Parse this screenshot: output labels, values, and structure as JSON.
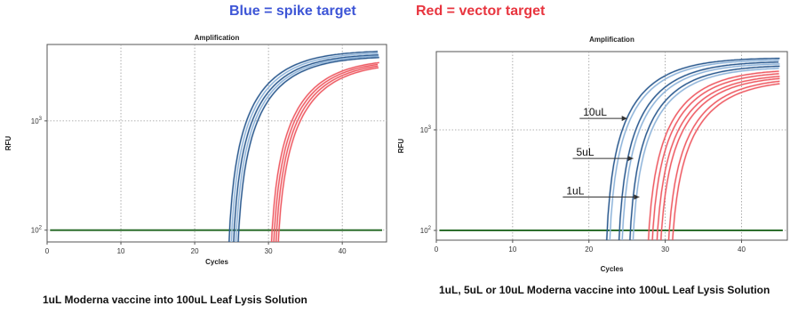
{
  "header": {
    "blue_label": "Blue = spike target",
    "red_label": "Red = vector target",
    "blue_color": "#3d55d6",
    "red_color": "#e8353f"
  },
  "colors": {
    "spike_dark": "#2b5a8f",
    "spike_light": "#8db3d9",
    "vector": "#ee5a62",
    "threshold": "#2d6e2d"
  },
  "chart_data": [
    {
      "type": "line",
      "title": "Amplification",
      "xlabel": "Cycles",
      "ylabel": "RFU",
      "xlim": [
        0,
        46
      ],
      "ylim": [
        78,
        5000
      ],
      "yscale": "log",
      "xticks": [
        0,
        10,
        20,
        30,
        40
      ],
      "yticks": [
        {
          "value": 100,
          "base": "10",
          "exp": "2"
        },
        {
          "value": 1000,
          "base": "10",
          "exp": "3"
        }
      ],
      "grid": true,
      "threshold": 100,
      "caption": "1uL Moderna vaccine into 100uL Leaf Lysis Solution",
      "series": [
        {
          "group": "spike",
          "start": 24.3,
          "max": 4400
        },
        {
          "group": "spike",
          "start": 24.6,
          "max": 4250
        },
        {
          "group": "spike",
          "start": 24.9,
          "max": 4100
        },
        {
          "group": "spike",
          "start": 25.2,
          "max": 4000
        },
        {
          "group": "spike",
          "start": 25.5,
          "max": 3900
        },
        {
          "group": "vector",
          "start": 30.0,
          "max": 3700
        },
        {
          "group": "vector",
          "start": 30.3,
          "max": 3600
        },
        {
          "group": "vector",
          "start": 30.6,
          "max": 3500
        },
        {
          "group": "vector",
          "start": 30.9,
          "max": 3400
        }
      ],
      "annotations": []
    },
    {
      "type": "line",
      "title": "Amplification",
      "xlabel": "Cycles",
      "ylabel": "RFU",
      "xlim": [
        0,
        46
      ],
      "ylim": [
        80,
        6000
      ],
      "yscale": "log",
      "xticks": [
        0,
        10,
        20,
        30,
        40
      ],
      "yticks": [
        {
          "value": 100,
          "base": "10",
          "exp": "2"
        },
        {
          "value": 1000,
          "base": "10",
          "exp": "3"
        }
      ],
      "grid": true,
      "threshold": 100,
      "caption": "1uL, 5uL or 10uL Moderna vaccine into 100uL Leaf Lysis Solution",
      "series": [
        {
          "group": "spike",
          "start": 22.0,
          "max": 5200
        },
        {
          "group": "spike",
          "start": 22.4,
          "max": 5000
        },
        {
          "group": "spike",
          "start": 23.6,
          "max": 4800
        },
        {
          "group": "spike",
          "start": 24.0,
          "max": 4600
        },
        {
          "group": "spike",
          "start": 25.0,
          "max": 4400
        },
        {
          "group": "spike",
          "start": 25.4,
          "max": 4200
        },
        {
          "group": "vector",
          "start": 27.4,
          "max": 4000
        },
        {
          "group": "vector",
          "start": 27.9,
          "max": 3800
        },
        {
          "group": "vector",
          "start": 28.5,
          "max": 3600
        },
        {
          "group": "vector",
          "start": 29.0,
          "max": 3450
        },
        {
          "group": "vector",
          "start": 30.0,
          "max": 3300
        },
        {
          "group": "vector",
          "start": 30.5,
          "max": 3150
        }
      ],
      "annotations": [
        {
          "text": "10uL",
          "x": 24.6,
          "y": 1300,
          "tip_x": 25.0
        },
        {
          "text": "5uL",
          "x": 23.7,
          "y": 520,
          "tip_x": 25.8
        },
        {
          "text": "1uL",
          "x": 22.4,
          "y": 215,
          "tip_x": 26.6
        }
      ]
    }
  ]
}
